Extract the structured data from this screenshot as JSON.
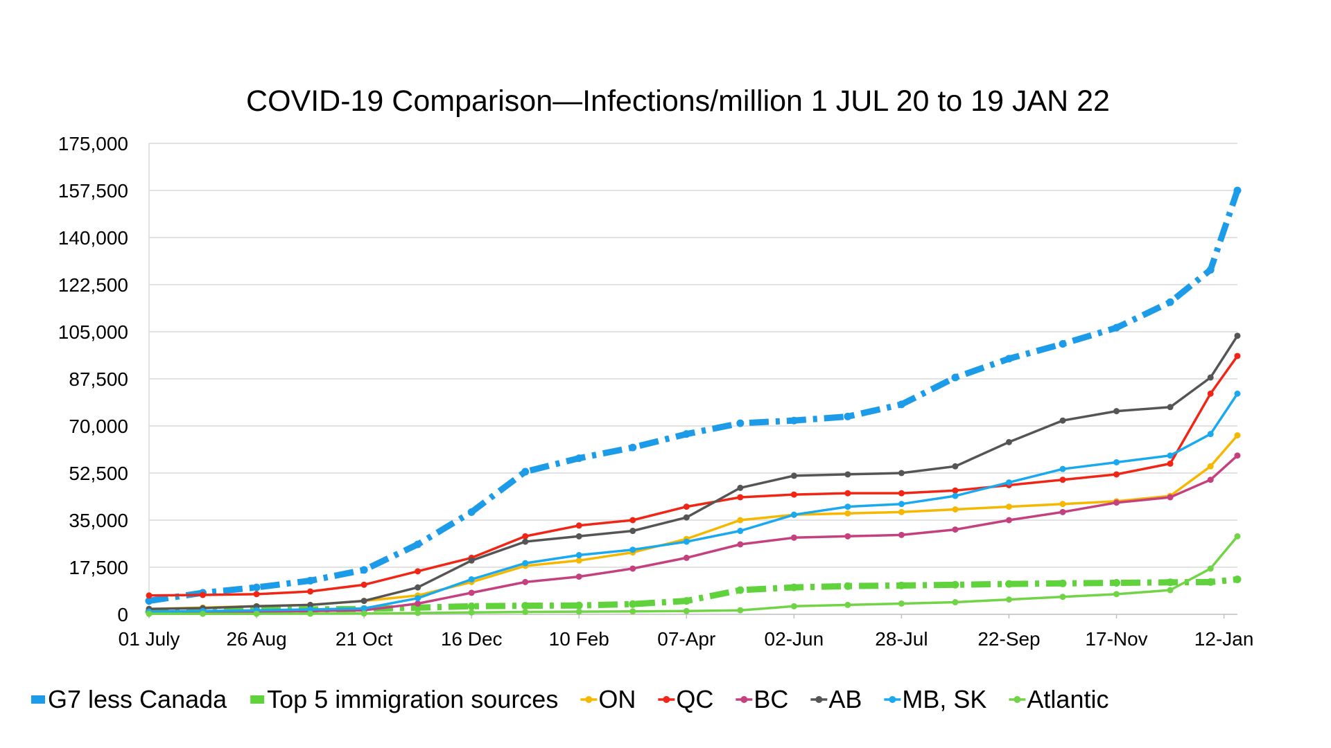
{
  "chart_data": {
    "type": "line",
    "title": "COVID-19 Comparison—Infections/million 1 JUL 20 to 19 JAN 22",
    "xlabel": "",
    "ylabel": "",
    "ylim": [
      0,
      175000
    ],
    "yticks": [
      "0",
      "17,500",
      "35,000",
      "52,500",
      "70,000",
      "87,500",
      "105,000",
      "122,500",
      "140,000",
      "157,500",
      "175,000"
    ],
    "x_tick_labels": [
      "01 July",
      "26 Aug",
      "21 Oct",
      "16 Dec",
      "10 Feb",
      "07-Apr",
      "02-Jun",
      "28-Jul",
      "22-Sep",
      "17-Nov",
      "12-Jan"
    ],
    "x_tick_dates": [
      "2020-07-01",
      "2020-08-26",
      "2020-10-21",
      "2020-12-16",
      "2021-02-10",
      "2021-04-07",
      "2021-06-02",
      "2021-07-28",
      "2021-09-22",
      "2021-11-17",
      "2022-01-12"
    ],
    "x_range": [
      "2020-07-01",
      "2022-01-19"
    ],
    "grid": "horizontal",
    "legend_position": "bottom",
    "x": [
      "2020-07-01",
      "2020-07-29",
      "2020-08-26",
      "2020-09-23",
      "2020-10-21",
      "2020-11-18",
      "2020-12-16",
      "2021-01-13",
      "2021-02-10",
      "2021-03-10",
      "2021-04-07",
      "2021-05-05",
      "2021-06-02",
      "2021-06-30",
      "2021-07-28",
      "2021-08-25",
      "2021-09-22",
      "2021-10-20",
      "2021-11-17",
      "2021-12-15",
      "2022-01-05",
      "2022-01-19"
    ],
    "series": [
      {
        "name": "G7 less Canada",
        "color": "#1c9ce8",
        "style": "dash-dot-thick",
        "values": [
          5000,
          8000,
          10000,
          12500,
          16500,
          26000,
          38000,
          53000,
          58000,
          62000,
          67000,
          71000,
          72000,
          73500,
          78000,
          88000,
          95000,
          100500,
          106500,
          116000,
          128000,
          157500
        ]
      },
      {
        "name": "Top 5 immigration sources",
        "color": "#5fd23c",
        "style": "dash-dot-thick",
        "values": [
          1000,
          1200,
          1500,
          1800,
          2000,
          2500,
          3000,
          3200,
          3300,
          3800,
          5000,
          9000,
          10000,
          10500,
          10700,
          11000,
          11300,
          11500,
          11700,
          11900,
          12000,
          13000
        ]
      },
      {
        "name": "ON",
        "color": "#f5b700",
        "style": "dotted-line",
        "values": [
          2000,
          2500,
          3000,
          3500,
          5000,
          7000,
          12000,
          18000,
          20000,
          23000,
          28000,
          35000,
          37000,
          37500,
          38000,
          39000,
          40000,
          41000,
          42000,
          44000,
          55000,
          66500
        ]
      },
      {
        "name": "QC",
        "color": "#f02515",
        "style": "dotted-line",
        "values": [
          7000,
          7200,
          7500,
          8500,
          11000,
          16000,
          21000,
          29000,
          33000,
          35000,
          40000,
          43500,
          44500,
          45000,
          45000,
          46000,
          48000,
          50000,
          52000,
          56000,
          82000,
          96000
        ]
      },
      {
        "name": "BC",
        "color": "#c4407e",
        "style": "dotted-line",
        "values": [
          800,
          900,
          1000,
          1200,
          1500,
          4000,
          8000,
          12000,
          14000,
          17000,
          21000,
          26000,
          28500,
          29000,
          29500,
          31500,
          35000,
          38000,
          41500,
          43500,
          50000,
          59000
        ]
      },
      {
        "name": "AB",
        "color": "#555555",
        "style": "dotted-line",
        "values": [
          2000,
          2300,
          3000,
          3500,
          5000,
          10000,
          20000,
          27000,
          29000,
          31000,
          36000,
          47000,
          51500,
          52000,
          52500,
          55000,
          64000,
          72000,
          75500,
          77000,
          88000,
          103500
        ]
      },
      {
        "name": "MB, SK",
        "color": "#1aa8ef",
        "style": "dotted-line",
        "values": [
          1000,
          1200,
          1500,
          1800,
          2200,
          6000,
          13000,
          19000,
          22000,
          24000,
          27000,
          31000,
          37000,
          40000,
          41000,
          44000,
          49000,
          54000,
          56500,
          59000,
          67000,
          82000
        ]
      },
      {
        "name": "Atlantic",
        "color": "#71d447",
        "style": "dotted-line",
        "values": [
          200,
          200,
          200,
          250,
          300,
          500,
          700,
          900,
          1000,
          1100,
          1200,
          1500,
          3000,
          3500,
          4000,
          4500,
          5500,
          6500,
          7500,
          9000,
          17000,
          29000
        ]
      }
    ]
  }
}
